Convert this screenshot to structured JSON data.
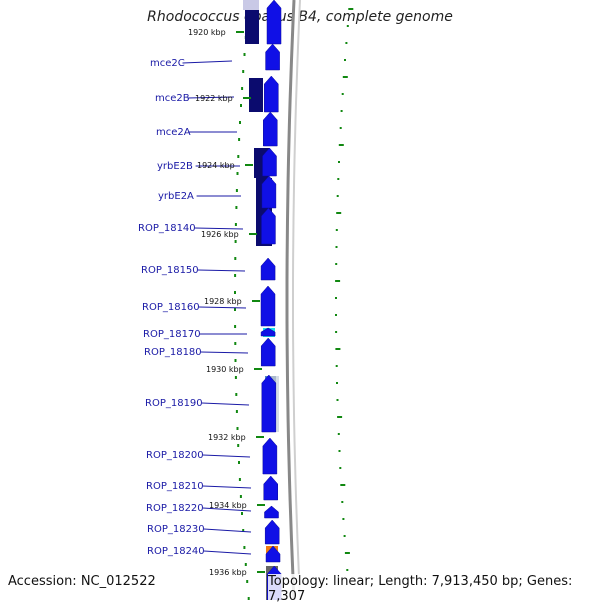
{
  "title": "Rhodococcus opacus B4, complete genome",
  "footer": {
    "accession": "Accession: NC_012522",
    "summary": "Topology: linear; Length: 7,913,450 bp; Genes: 7,307"
  },
  "colors": {
    "cds": "#1010e6",
    "cds_dark": "#0b0b6e",
    "label": "#1a1aa6",
    "tick": "#118811",
    "backbone": "#888888",
    "cyan_feature": "#19e0f0",
    "orange_feature": "#f07b10"
  },
  "kbp_ticks": [
    "1920 kbp",
    "1922 kbp",
    "1924 kbp",
    "1926 kbp",
    "1928 kbp",
    "1930 kbp",
    "1932 kbp",
    "1934 kbp",
    "1936 kbp"
  ],
  "genes": [
    "mce2C",
    "mce2B",
    "mce2A",
    "yrbE2B",
    "yrbE2A",
    "ROP_18140",
    "ROP_18150",
    "ROP_18160",
    "ROP_18170",
    "ROP_18180",
    "ROP_18190",
    "ROP_18200",
    "ROP_18210",
    "ROP_18220",
    "ROP_18230",
    "ROP_18240"
  ]
}
